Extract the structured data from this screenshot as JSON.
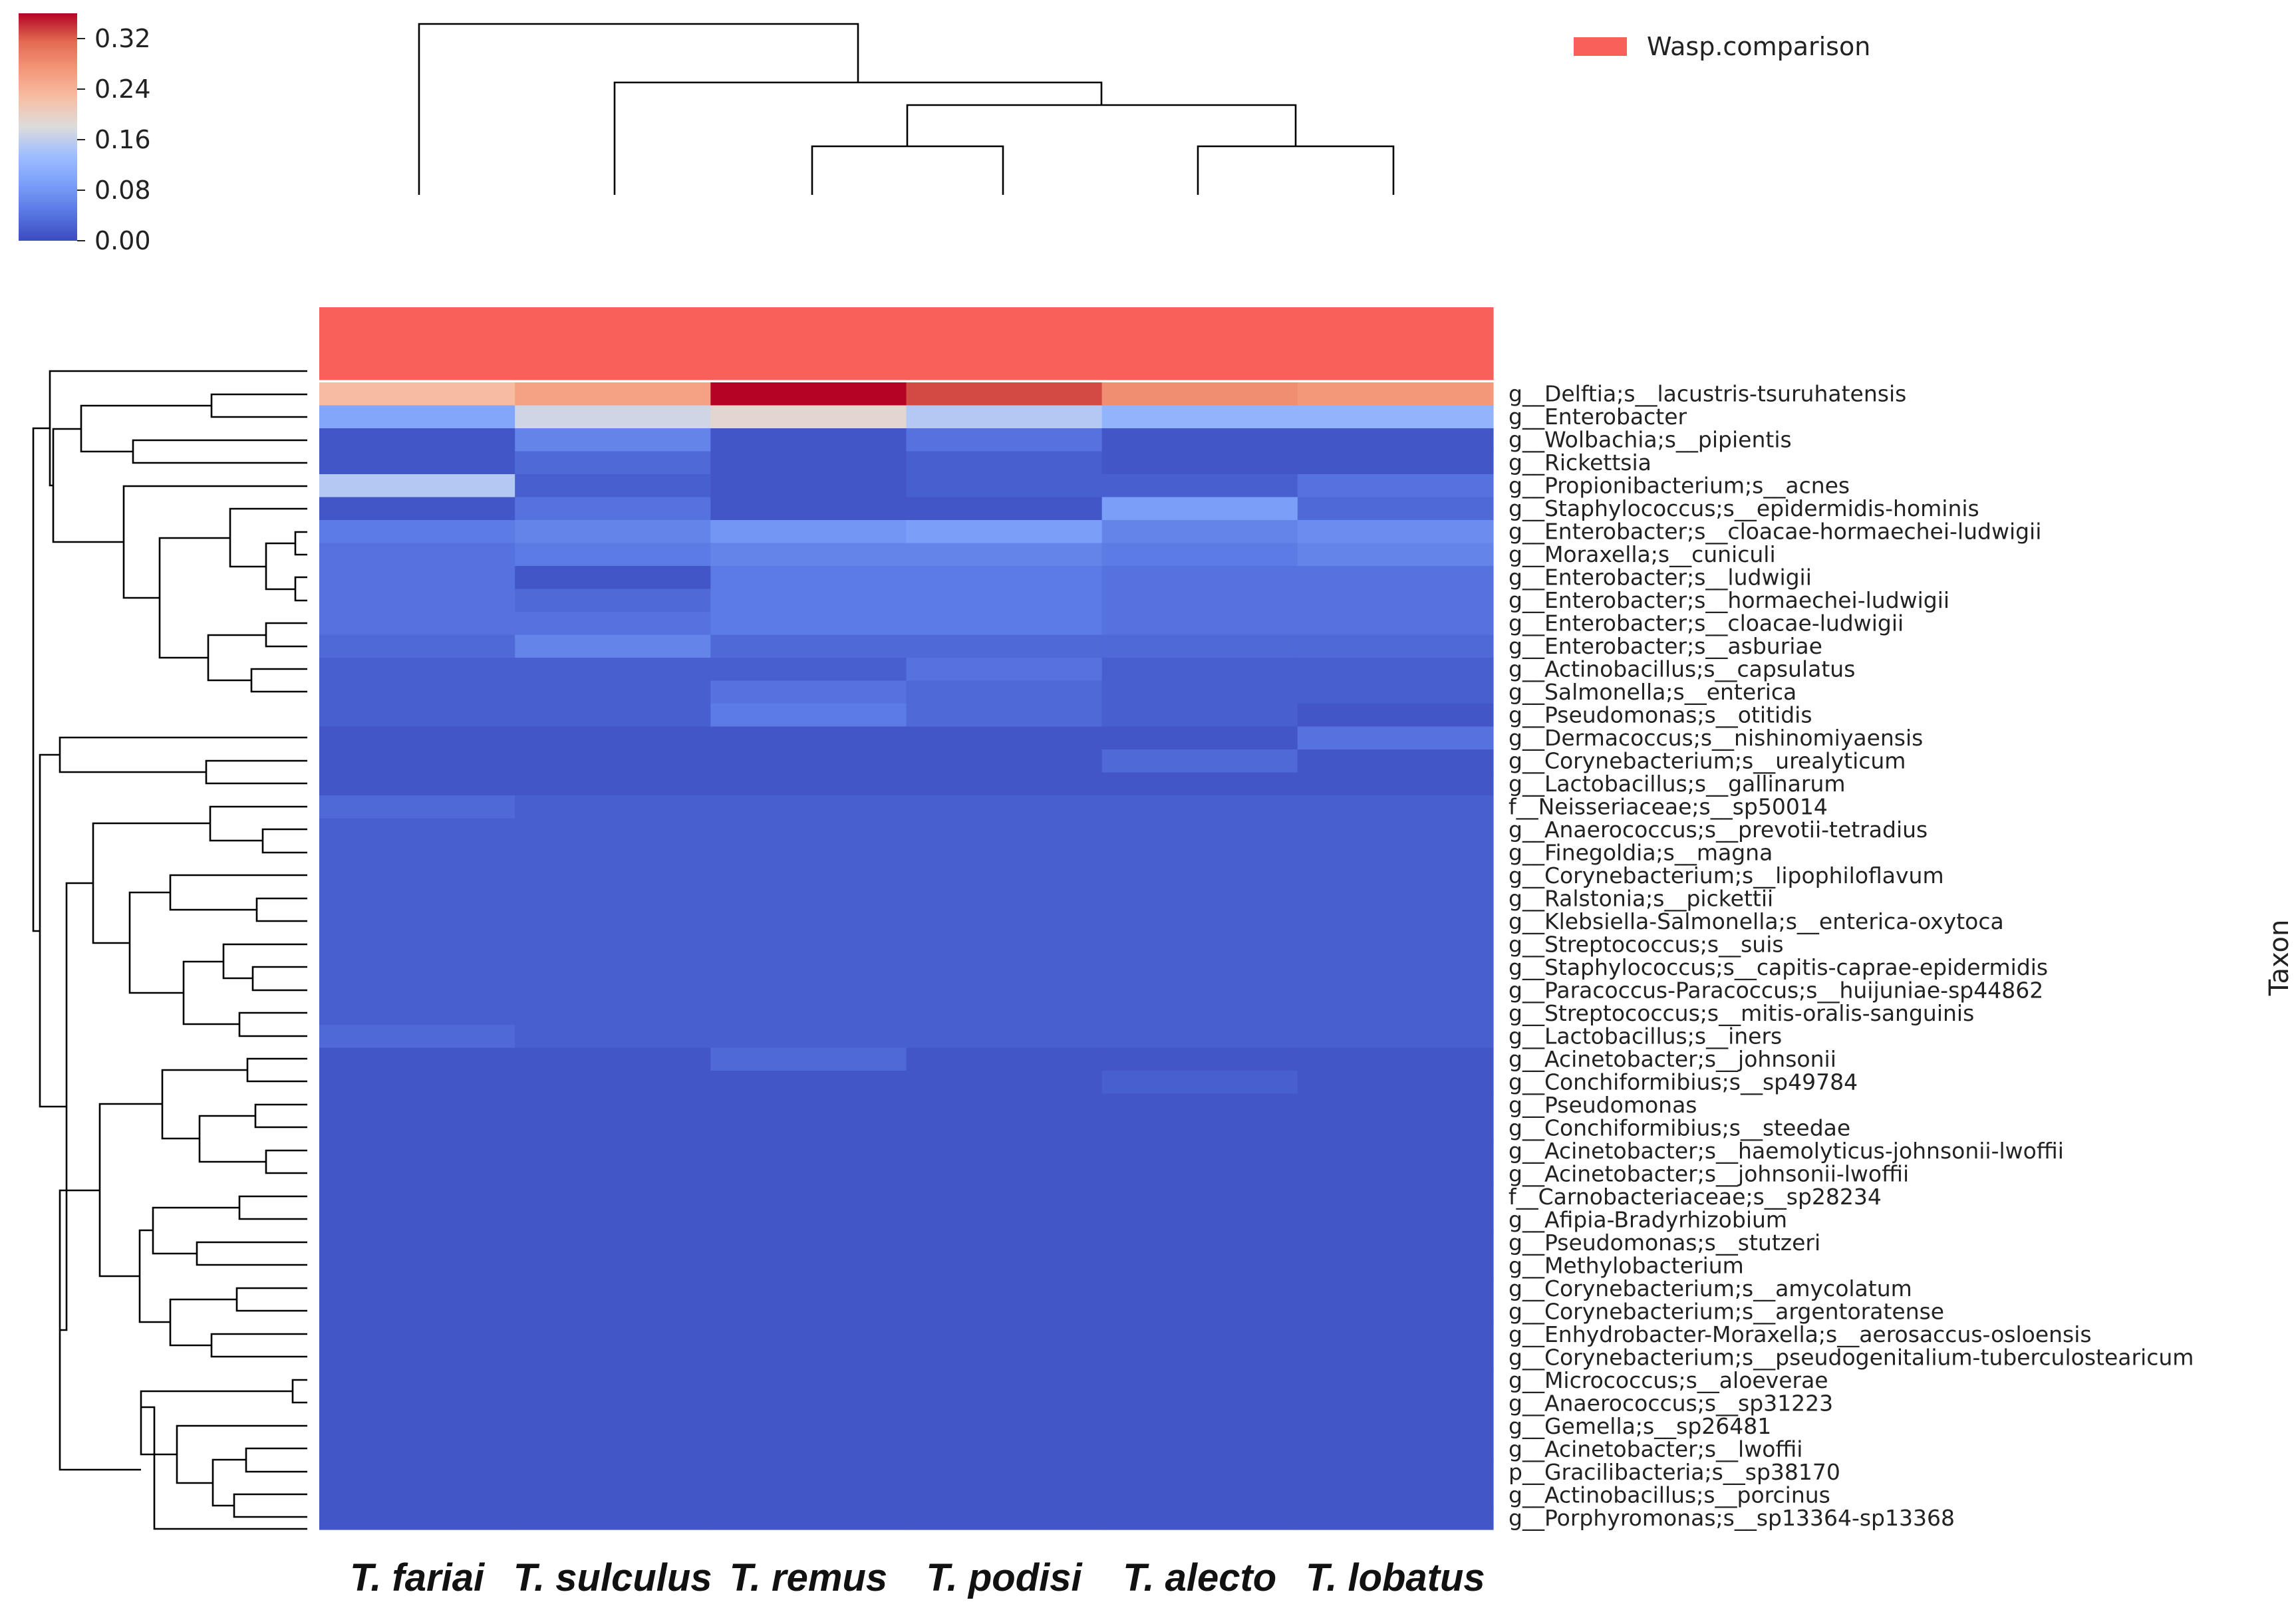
{
  "chart_data": {
    "type": "heatmap",
    "title": "",
    "columns": [
      "T. fariai",
      "T. sulculus",
      "T. remus",
      "T. podisi",
      "T. alecto",
      "T. lobatus"
    ],
    "rows": [
      "g__Delftia;s__lacustris-tsuruhatensis",
      "g__Enterobacter",
      "g__Wolbachia;s__pipientis",
      "g__Rickettsia",
      "g__Propionibacterium;s__acnes",
      "g__Staphylococcus;s__epidermidis-hominis",
      "g__Enterobacter;s__cloacae-hormaechei-ludwigii",
      "g__Moraxella;s__cuniculi",
      "g__Enterobacter;s__ludwigii",
      "g__Enterobacter;s__hormaechei-ludwigii",
      "g__Enterobacter;s__cloacae-ludwigii",
      "g__Enterobacter;s__asburiae",
      "g__Actinobacillus;s__capsulatus",
      "g__Salmonella;s__enterica",
      "g__Pseudomonas;s__otitidis",
      "g__Dermacoccus;s__nishinomiyaensis",
      "g__Corynebacterium;s__urealyticum",
      "g__Lactobacillus;s__gallinarum",
      "f__Neisseriaceae;s__sp50014",
      "g__Anaerococcus;s__prevotii-tetradius",
      "g__Finegoldia;s__magna",
      "g__Corynebacterium;s__lipophiloflavum",
      "g__Ralstonia;s__pickettii",
      "g__Klebsiella-Salmonella;s__enterica-oxytoca",
      "g__Streptococcus;s__suis",
      "g__Staphylococcus;s__capitis-caprae-epidermidis",
      "g__Paracoccus-Paracoccus;s__huijuniae-sp44862",
      "g__Streptococcus;s__mitis-oralis-sanguinis",
      "g__Lactobacillus;s__iners",
      "g__Acinetobacter;s__johnsonii",
      "g__Conchiformibius;s__sp49784",
      "g__Pseudomonas",
      "g__Conchiformibius;s__steedae",
      "g__Acinetobacter;s__haemolyticus-johnsonii-lwoffii",
      "g__Acinetobacter;s__johnsonii-lwoffii",
      "f__Carnobacteriaceae;s__sp28234",
      "g__Afipia-Bradyrhizobium",
      "g__Pseudomonas;s__stutzeri",
      "g__Methylobacterium",
      "g__Corynebacterium;s__amycolatum",
      "g__Corynebacterium;s__argentoratense",
      "g__Enhydrobacter-Moraxella;s__aerosaccus-osloensis",
      "g__Corynebacterium;s__pseudogenitalium-tuberculostearicum",
      "g__Micrococcus;s__aloeverae",
      "g__Anaerococcus;s__sp31223",
      "g__Gemella;s__sp26481",
      "g__Acinetobacter;s__lwoffii",
      "p__Gracilibacteria;s__sp38170",
      "g__Actinobacillus;s__porcinus",
      "g__Porphyromonas;s__sp13364-sp13368"
    ],
    "values": [
      [
        0.23,
        0.26,
        0.37,
        0.33,
        0.28,
        0.27
      ],
      [
        0.1,
        0.17,
        0.19,
        0.15,
        0.12,
        0.12
      ],
      [
        0.01,
        0.06,
        0.01,
        0.04,
        0.01,
        0.01
      ],
      [
        0.01,
        0.03,
        0.01,
        0.02,
        0.01,
        0.01
      ],
      [
        0.15,
        0.02,
        0.01,
        0.02,
        0.02,
        0.04
      ],
      [
        0.01,
        0.04,
        0.01,
        0.01,
        0.09,
        0.03
      ],
      [
        0.05,
        0.06,
        0.08,
        0.09,
        0.06,
        0.07
      ],
      [
        0.04,
        0.05,
        0.06,
        0.06,
        0.05,
        0.06
      ],
      [
        0.04,
        0.01,
        0.05,
        0.05,
        0.04,
        0.04
      ],
      [
        0.04,
        0.03,
        0.05,
        0.05,
        0.04,
        0.04
      ],
      [
        0.04,
        0.04,
        0.05,
        0.05,
        0.04,
        0.04
      ],
      [
        0.03,
        0.06,
        0.03,
        0.03,
        0.03,
        0.03
      ],
      [
        0.02,
        0.02,
        0.02,
        0.04,
        0.02,
        0.02
      ],
      [
        0.02,
        0.02,
        0.04,
        0.03,
        0.02,
        0.02
      ],
      [
        0.02,
        0.02,
        0.05,
        0.03,
        0.02,
        0.01
      ],
      [
        0.01,
        0.01,
        0.01,
        0.01,
        0.01,
        0.04
      ],
      [
        0.01,
        0.01,
        0.01,
        0.01,
        0.03,
        0.01
      ],
      [
        0.01,
        0.01,
        0.01,
        0.01,
        0.01,
        0.01
      ],
      [
        0.03,
        0.02,
        0.02,
        0.02,
        0.02,
        0.02
      ],
      [
        0.02,
        0.02,
        0.02,
        0.02,
        0.02,
        0.02
      ],
      [
        0.02,
        0.02,
        0.02,
        0.02,
        0.02,
        0.02
      ],
      [
        0.02,
        0.02,
        0.02,
        0.02,
        0.02,
        0.02
      ],
      [
        0.02,
        0.02,
        0.02,
        0.02,
        0.02,
        0.02
      ],
      [
        0.02,
        0.02,
        0.02,
        0.02,
        0.02,
        0.02
      ],
      [
        0.02,
        0.02,
        0.02,
        0.02,
        0.02,
        0.02
      ],
      [
        0.02,
        0.02,
        0.02,
        0.02,
        0.02,
        0.02
      ],
      [
        0.02,
        0.02,
        0.02,
        0.02,
        0.02,
        0.02
      ],
      [
        0.02,
        0.02,
        0.02,
        0.02,
        0.02,
        0.02
      ],
      [
        0.03,
        0.02,
        0.02,
        0.02,
        0.02,
        0.02
      ],
      [
        0.01,
        0.01,
        0.03,
        0.01,
        0.01,
        0.01
      ],
      [
        0.01,
        0.01,
        0.01,
        0.01,
        0.02,
        0.01
      ],
      [
        0.01,
        0.01,
        0.01,
        0.01,
        0.01,
        0.01
      ],
      [
        0.01,
        0.01,
        0.01,
        0.01,
        0.01,
        0.01
      ],
      [
        0.01,
        0.01,
        0.01,
        0.01,
        0.01,
        0.01
      ],
      [
        0.01,
        0.01,
        0.01,
        0.01,
        0.01,
        0.01
      ],
      [
        0.01,
        0.01,
        0.01,
        0.01,
        0.01,
        0.01
      ],
      [
        0.01,
        0.01,
        0.01,
        0.01,
        0.01,
        0.01
      ],
      [
        0.01,
        0.01,
        0.01,
        0.01,
        0.01,
        0.01
      ],
      [
        0.01,
        0.01,
        0.01,
        0.01,
        0.01,
        0.01
      ],
      [
        0.01,
        0.01,
        0.01,
        0.01,
        0.01,
        0.01
      ],
      [
        0.01,
        0.01,
        0.01,
        0.01,
        0.01,
        0.01
      ],
      [
        0.01,
        0.01,
        0.01,
        0.01,
        0.01,
        0.01
      ],
      [
        0.01,
        0.01,
        0.01,
        0.01,
        0.01,
        0.01
      ],
      [
        0.01,
        0.01,
        0.01,
        0.01,
        0.01,
        0.01
      ],
      [
        0.01,
        0.01,
        0.01,
        0.01,
        0.01,
        0.01
      ],
      [
        0.01,
        0.01,
        0.01,
        0.01,
        0.01,
        0.01
      ],
      [
        0.01,
        0.01,
        0.01,
        0.01,
        0.01,
        0.01
      ],
      [
        0.01,
        0.01,
        0.01,
        0.01,
        0.01,
        0.01
      ],
      [
        0.01,
        0.01,
        0.01,
        0.01,
        0.01,
        0.01
      ],
      [
        0.01,
        0.01,
        0.01,
        0.01,
        0.01,
        0.01
      ]
    ],
    "annotation_row": {
      "name": "Wasp.comparison",
      "color": "#f8605a"
    },
    "colorbar": {
      "range": [
        0.0,
        0.36
      ],
      "ticks": [
        "0.32",
        "0.24",
        "0.16",
        "0.08",
        "0.00"
      ],
      "colormap": "coolwarm"
    },
    "ylabel_right": "Taxon",
    "legend": {
      "entries": [
        "Wasp.comparison"
      ],
      "placement": "top-right"
    }
  }
}
